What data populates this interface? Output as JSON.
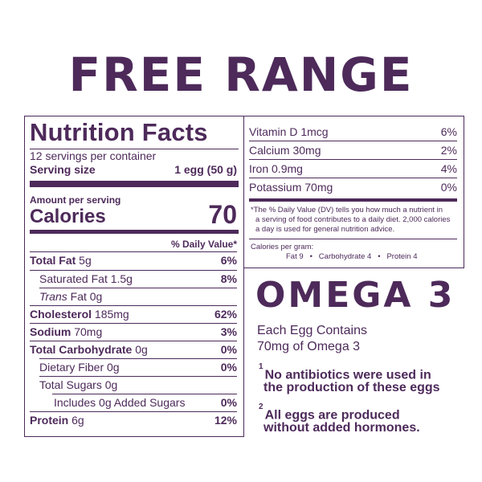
{
  "heading": "FREE RANGE",
  "nutrition": {
    "title": "Nutrition Facts",
    "servings": "12 servings per container",
    "serving_size_label": "Serving size",
    "serving_size_value": "1 egg (50 g)",
    "amount_per_serving": "Amount per serving",
    "calories_label": "Calories",
    "calories_value": "70",
    "dv_header": "% Daily Value*",
    "rows": [
      {
        "name_bold": "Total Fat",
        "name": " 5g",
        "dv": "6%"
      },
      {
        "name": "Saturated Fat 1.5g",
        "dv": "8%"
      },
      {
        "name_italic": "Trans",
        "name": " Fat 0g",
        "dv": ""
      },
      {
        "name_bold": "Cholesterol",
        "name": " 185mg",
        "dv": "62%"
      },
      {
        "name_bold": "Sodium",
        "name": " 70mg",
        "dv": "3%"
      },
      {
        "name_bold": "Total Carbohydrate",
        "name": " 0g",
        "dv": "0%"
      },
      {
        "name": "Dietary Fiber 0g",
        "dv": "0%"
      },
      {
        "name": "Total Sugars 0g",
        "dv": ""
      },
      {
        "name": "Includes 0g Added Sugars",
        "dv": "0%"
      },
      {
        "name_bold": "Protein",
        "name": " 6g",
        "dv": "12%"
      }
    ],
    "vitamins": [
      {
        "name": "Vitamin D 1mcg",
        "dv": "6%"
      },
      {
        "name": "Calcium 30mg",
        "dv": "2%"
      },
      {
        "name": "Iron 0.9mg",
        "dv": "4%"
      },
      {
        "name": "Potassium 70mg",
        "dv": "0%"
      }
    ],
    "footnote_line1": "*The % Daily Value (DV) tells you how much a nutrient in",
    "footnote_line2": "a serving of food contributes to a daily diet. 2,000 calories",
    "footnote_line3": "a day is used for general nutrition advice.",
    "cal_per_gram_label": "Calories per gram:",
    "cal_per_gram_values": "Fat 9   •   Carbohydrate 4   •   Protein 4"
  },
  "omega": {
    "title": "OMEGA 3",
    "line1": "Each Egg Contains",
    "line2": "70mg of Omega 3"
  },
  "notes": [
    {
      "num": "1",
      "line1": "No antibiotics were used in",
      "line2": "the production of these eggs"
    },
    {
      "num": "2",
      "line1": "All eggs are produced",
      "line2": "without added hormones."
    }
  ]
}
